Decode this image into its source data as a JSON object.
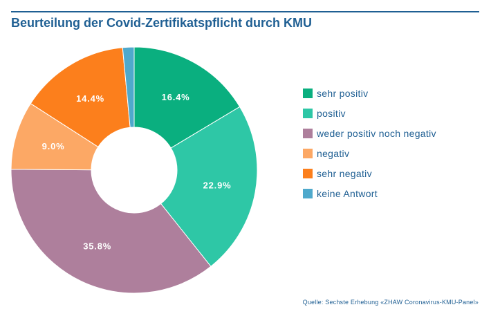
{
  "chart_data": {
    "type": "pie",
    "donut": true,
    "title": "Beurteilung der Covid-Zertifikatspflicht durch KMU",
    "source": "Quelle: Sechste Erhebung «ZHAW Coronavirus-KMU-Panel»",
    "legend_position": "right",
    "unit": "%",
    "slices": [
      {
        "name": "sehr positiv",
        "value": 16.4,
        "label": "16.4%",
        "color": "#0aaf7f"
      },
      {
        "name": "positiv",
        "value": 22.9,
        "label": "22.9%",
        "color": "#2ec7a6"
      },
      {
        "name": "weder positiv noch negativ",
        "value": 35.8,
        "label": "35.8%",
        "color": "#ae7f9c"
      },
      {
        "name": "negativ",
        "value": 9.0,
        "label": "9.0%",
        "color": "#fca865"
      },
      {
        "name": "sehr negativ",
        "value": 14.4,
        "label": "14.4%",
        "color": "#fc7f1c"
      },
      {
        "name": "keine Antwort",
        "value": 1.5,
        "label": "",
        "color": "#4fa9cc"
      }
    ]
  }
}
